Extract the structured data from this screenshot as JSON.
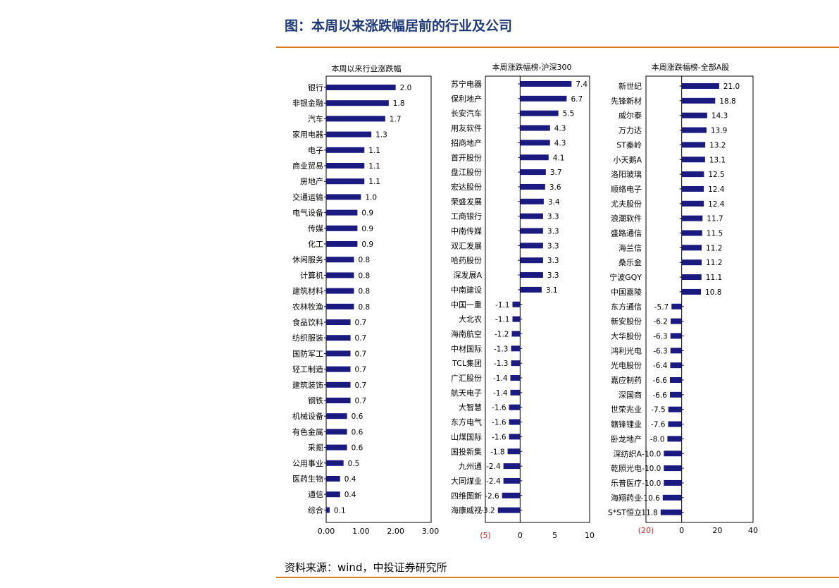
{
  "header": {
    "title": "图：本周以来涨跌幅居前的行业及公司",
    "source": "资料来源：wind，中投证券研究所"
  },
  "colors": {
    "bar": "#1a1a80",
    "accent": "#e07a1f",
    "title": "#1f3a7a",
    "negative_tick": "#cc2222"
  },
  "chart_data": [
    {
      "type": "bar",
      "orientation": "horizontal",
      "title": "本周以来行业涨跌幅",
      "categories": [
        "银行",
        "非银金融",
        "汽车",
        "家用电器",
        "电子",
        "商业贸易",
        "房地产",
        "交通运输",
        "电气设备",
        "传媒",
        "化工",
        "休闲服务",
        "计算机",
        "建筑材料",
        "农林牧渔",
        "食品饮料",
        "纺织服装",
        "国防军工",
        "轻工制造",
        "建筑装饰",
        "钢铁",
        "机械设备",
        "有色金属",
        "采掘",
        "公用事业",
        "医药生物",
        "通信",
        "综合"
      ],
      "values": [
        2.0,
        1.8,
        1.7,
        1.3,
        1.1,
        1.1,
        1.1,
        1.0,
        0.9,
        0.9,
        0.9,
        0.8,
        0.8,
        0.8,
        0.8,
        0.7,
        0.7,
        0.7,
        0.7,
        0.7,
        0.7,
        0.6,
        0.6,
        0.6,
        0.5,
        0.4,
        0.4,
        0.1
      ],
      "value_labels": [
        "2.0",
        "1.8",
        "1.7",
        "1.3",
        "1.1",
        "1.1",
        "1.1",
        "1.0",
        "0.9",
        "0.9",
        "0.9",
        "0.8",
        "0.8",
        "0.8",
        "0.8",
        "0.7",
        "0.7",
        "0.7",
        "0.7",
        "0.7",
        "0.7",
        "0.6",
        "0.6",
        "0.6",
        "0.5",
        "0.4",
        "0.4",
        "0.1"
      ],
      "xlim": [
        0,
        3
      ],
      "xticks": [
        "0.00",
        "1.00",
        "2.00",
        "3.00"
      ],
      "tick_values": [
        0,
        1,
        2,
        3
      ]
    },
    {
      "type": "bar",
      "orientation": "horizontal",
      "title": "本周涨跌幅榜-沪深300",
      "categories": [
        "苏宁电器",
        "保利地产",
        "长安汽车",
        "用友软件",
        "招商地产",
        "首开股份",
        "盘江股份",
        "宏达股份",
        "荣盛发展",
        "工商银行",
        "中南传媒",
        "双汇发展",
        "哈药股份",
        "深发展A",
        "中南建设",
        "中国一重",
        "大北农",
        "海南航空",
        "中材国际",
        "TCL集团",
        "广汇股份",
        "航天电子",
        "大智慧",
        "东方电气",
        "山煤国际",
        "国投新集",
        "九州通",
        "大同煤业",
        "四维图新",
        "海康威视"
      ],
      "values": [
        7.4,
        6.7,
        5.5,
        4.3,
        4.3,
        4.1,
        3.7,
        3.6,
        3.4,
        3.3,
        3.3,
        3.3,
        3.3,
        3.3,
        3.1,
        -1.1,
        -1.1,
        -1.2,
        -1.3,
        -1.3,
        -1.4,
        -1.4,
        -1.6,
        -1.6,
        -1.6,
        -1.8,
        -2.4,
        -2.4,
        -2.6,
        -3.2
      ],
      "value_labels": [
        "7.4",
        "6.7",
        "5.5",
        "4.3",
        "4.3",
        "4.1",
        "3.7",
        "3.6",
        "3.4",
        "3.3",
        "3.3",
        "3.3",
        "3.3",
        "3.3",
        "3.1",
        "-1.1",
        "-1.1",
        "-1.2",
        "-1.3",
        "-1.3",
        "-1.4",
        "-1.4",
        "-1.6",
        "-1.6",
        "-1.6",
        "-1.8",
        "-2.4",
        "-2.4",
        "-2.6",
        "-3.2"
      ],
      "xlim": [
        -5,
        10
      ],
      "xticks": [
        "(5)",
        "0",
        "5",
        "10"
      ],
      "tick_values": [
        -5,
        0,
        5,
        10
      ]
    },
    {
      "type": "bar",
      "orientation": "horizontal",
      "title": "本周涨跌幅榜-全部A股",
      "categories": [
        "新世纪",
        "先锋新材",
        "威尔泰",
        "万力达",
        "ST秦岭",
        "小天鹅A",
        "洛阳玻璃",
        "顺络电子",
        "尤夫股份",
        "浪潮软件",
        "盛路通信",
        "海兰信",
        "桑乐金",
        "宁波GQY",
        "中国嘉陵",
        "东方通信",
        "新安股份",
        "大华股份",
        "鸿利光电",
        "光电股份",
        "嘉应制药",
        "深国商",
        "世荣兆业",
        "赣锋锂业",
        "卧龙地产",
        "深纺织A",
        "乾照光电",
        "乐普医疗",
        "海翔药业",
        "S*ST恒立"
      ],
      "values": [
        21.0,
        18.8,
        14.3,
        13.9,
        13.2,
        13.1,
        12.5,
        12.4,
        12.4,
        11.7,
        11.5,
        11.2,
        11.2,
        11.1,
        10.8,
        -5.7,
        -6.2,
        -6.3,
        -6.3,
        -6.4,
        -6.6,
        -6.6,
        -7.5,
        -7.6,
        -8.0,
        -10.0,
        -10.0,
        -10.0,
        -10.6,
        -11.8
      ],
      "value_labels": [
        "21.0",
        "18.8",
        "14.3",
        "13.9",
        "13.2",
        "13.1",
        "12.5",
        "12.4",
        "12.4",
        "11.7",
        "11.5",
        "11.2",
        "11.2",
        "11.1",
        "10.8",
        "-5.7",
        "-6.2",
        "-6.3",
        "-6.3",
        "-6.4",
        "-6.6",
        "-6.6",
        "-7.5",
        "-7.6",
        "-8.0",
        "-10.0",
        "-10.0",
        "-10.0",
        "-10.6",
        "-11.8"
      ],
      "xlim": [
        -20,
        40
      ],
      "xticks": [
        "(20)",
        "0",
        "20",
        "40"
      ],
      "tick_values": [
        -20,
        0,
        20,
        40
      ]
    }
  ]
}
